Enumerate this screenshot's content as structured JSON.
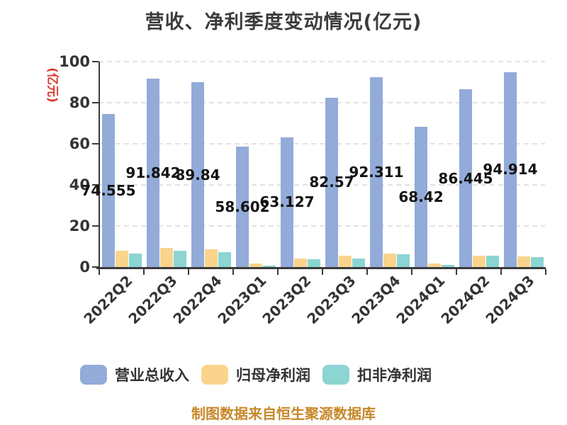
{
  "chart": {
    "title": "营收、净利季度变动情况(亿元)",
    "y_axis_unit": "(亿元)",
    "source_note": "制图数据来自恒生聚源数据库"
  },
  "chart_data": {
    "type": "bar",
    "title": "营收、净利季度变动情况(亿元)",
    "ylabel": "(亿元)",
    "xlabel": "",
    "categories": [
      "2022Q2",
      "2022Q3",
      "2022Q4",
      "2023Q1",
      "2023Q2",
      "2023Q3",
      "2023Q4",
      "2024Q1",
      "2024Q2",
      "2024Q3"
    ],
    "series": [
      {
        "name": "营业总收入",
        "color": "#92abd8",
        "values": [
          74.555,
          91.842,
          89.84,
          58.602,
          63.127,
          82.57,
          92.311,
          68.42,
          86.445,
          94.914
        ],
        "value_labels_visible": true
      },
      {
        "name": "归母净利润",
        "color": "#fad48c",
        "values": [
          7.9,
          9.4,
          8.6,
          1.6,
          4.3,
          5.5,
          6.5,
          1.8,
          5.5,
          5.2
        ],
        "value_labels_visible": false,
        "values_estimated_from_pixels": true
      },
      {
        "name": "扣非净利润",
        "color": "#8bd5d2",
        "values": [
          6.6,
          7.9,
          7.3,
          0.8,
          3.8,
          4.2,
          6.2,
          1.2,
          5.5,
          5.0
        ],
        "value_labels_visible": false,
        "values_estimated_from_pixels": true
      }
    ],
    "ylim": [
      0,
      100
    ],
    "yticks": [
      0,
      20,
      40,
      60,
      80,
      100
    ],
    "grid": "horizontal dashed",
    "legend_position": "bottom",
    "source_note": "制图数据来自恒生聚源数据库"
  },
  "colors": {
    "title": "#3c3c3c",
    "axis": "#3a3a3a",
    "tick_label": "#333333",
    "data_label": "#141414",
    "gridline": "#e2e2e2",
    "y_unit_label": "#d93a2b",
    "source_note": "#c8872a",
    "background": "#ffffff"
  }
}
